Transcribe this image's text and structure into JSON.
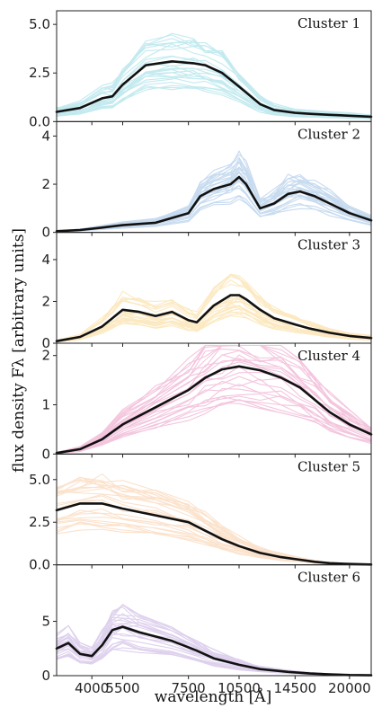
{
  "figure": {
    "ylabel": "flux density Fλ [arbitrary units]",
    "xlabel": "wavelength [Å]"
  },
  "chart_data": [
    {
      "type": "line",
      "title": "Cluster 1",
      "color": "#2bb5c8",
      "ylim": [
        0,
        5.7
      ],
      "yticks": [
        0,
        2.5,
        5.0
      ],
      "ytick_labels": [
        "0.0",
        "2.5",
        "5.0"
      ],
      "grid": false,
      "series": [
        {
          "x": [
            2500,
            3500,
            4500,
            5000,
            5500,
            6200,
            7000,
            7800,
            8500,
            9500,
            10500,
            12000,
            13000,
            14500,
            16000,
            18000,
            20000,
            22000
          ],
          "y": [
            0.5,
            0.7,
            1.2,
            1.3,
            1.9,
            2.9,
            3.1,
            3.0,
            2.9,
            2.5,
            1.8,
            0.9,
            0.6,
            0.45,
            0.4,
            0.35,
            0.3,
            0.25
          ]
        }
      ]
    },
    {
      "type": "line",
      "title": "Cluster 2",
      "color": "#3a7fc9",
      "ylim": [
        0,
        4.6
      ],
      "yticks": [
        0,
        2,
        4
      ],
      "ytick_labels": [
        "0",
        "2",
        "4"
      ],
      "grid": false,
      "series": [
        {
          "x": [
            2500,
            3500,
            4500,
            5500,
            6500,
            7500,
            8200,
            9000,
            10000,
            10500,
            11000,
            12000,
            13000,
            14000,
            15000,
            16500,
            18000,
            20000,
            22000
          ],
          "y": [
            0.05,
            0.1,
            0.2,
            0.3,
            0.4,
            0.8,
            1.5,
            1.8,
            2.0,
            2.3,
            2.0,
            1.0,
            1.2,
            1.6,
            1.7,
            1.5,
            1.2,
            0.8,
            0.5
          ]
        }
      ]
    },
    {
      "type": "line",
      "title": "Cluster 3",
      "color": "#f5b428",
      "ylim": [
        0,
        5.3
      ],
      "yticks": [
        0,
        2,
        4
      ],
      "ytick_labels": [
        "0",
        "2",
        "4"
      ],
      "grid": false,
      "series": [
        {
          "x": [
            2500,
            3500,
            4500,
            5000,
            5500,
            6000,
            6500,
            7000,
            7500,
            8000,
            9000,
            10000,
            10500,
            11000,
            12000,
            13000,
            14500,
            16000,
            18000,
            20000,
            22000
          ],
          "y": [
            0.1,
            0.3,
            0.8,
            1.2,
            1.6,
            1.5,
            1.3,
            1.5,
            1.1,
            1.0,
            1.8,
            2.3,
            2.3,
            2.1,
            1.6,
            1.2,
            0.9,
            0.7,
            0.5,
            0.35,
            0.25
          ]
        }
      ]
    },
    {
      "type": "line",
      "title": "Cluster 4",
      "color": "#d6328a",
      "ylim": [
        0,
        2.25
      ],
      "yticks": [
        0,
        1,
        2
      ],
      "ytick_labels": [
        "0",
        "1",
        "2"
      ],
      "grid": false,
      "series": [
        {
          "x": [
            2500,
            3500,
            4500,
            5500,
            6500,
            7500,
            8500,
            9500,
            10500,
            12000,
            13500,
            15000,
            16500,
            18000,
            20000,
            22000
          ],
          "y": [
            0.02,
            0.1,
            0.3,
            0.6,
            0.95,
            1.3,
            1.55,
            1.72,
            1.78,
            1.7,
            1.55,
            1.35,
            1.1,
            0.85,
            0.6,
            0.4
          ]
        }
      ]
    },
    {
      "type": "line",
      "title": "Cluster 5",
      "color": "#f39a4c",
      "ylim": [
        0,
        6.5
      ],
      "yticks": [
        0,
        2.5,
        5.0
      ],
      "ytick_labels": [
        "0.0",
        "2.5",
        "5.0"
      ],
      "grid": false,
      "series": [
        {
          "x": [
            2500,
            3500,
            4500,
            5500,
            6500,
            7500,
            8500,
            9500,
            10500,
            12000,
            13500,
            15000,
            16500,
            18000,
            20000,
            22000
          ],
          "y": [
            3.2,
            3.6,
            3.6,
            3.3,
            2.9,
            2.5,
            2.0,
            1.5,
            1.1,
            0.7,
            0.45,
            0.3,
            0.18,
            0.1,
            0.05,
            0.02
          ]
        }
      ]
    },
    {
      "type": "line",
      "title": "Cluster 6",
      "color": "#8a5cc0",
      "ylim": [
        0,
        10.2
      ],
      "yticks": [
        0,
        5
      ],
      "ytick_labels": [
        "0",
        "5"
      ],
      "grid": false,
      "series": [
        {
          "x": [
            2500,
            3000,
            3500,
            4000,
            4500,
            5000,
            5500,
            6000,
            7000,
            8000,
            9000,
            10500,
            12000,
            14000,
            16000,
            18000,
            20000,
            22000
          ],
          "y": [
            2.5,
            3.0,
            2.0,
            1.8,
            2.8,
            4.2,
            4.5,
            4.0,
            3.2,
            2.3,
            1.6,
            1.0,
            0.6,
            0.35,
            0.2,
            0.12,
            0.06,
            0.03
          ]
        }
      ]
    }
  ],
  "xaxis": {
    "ticks": [
      4000,
      5500,
      7500,
      10500,
      14500,
      20000
    ],
    "tick_labels": [
      "4000",
      "5500",
      "7500",
      "10500",
      "14500",
      "20000"
    ],
    "xlim": [
      2500,
      22000
    ]
  }
}
